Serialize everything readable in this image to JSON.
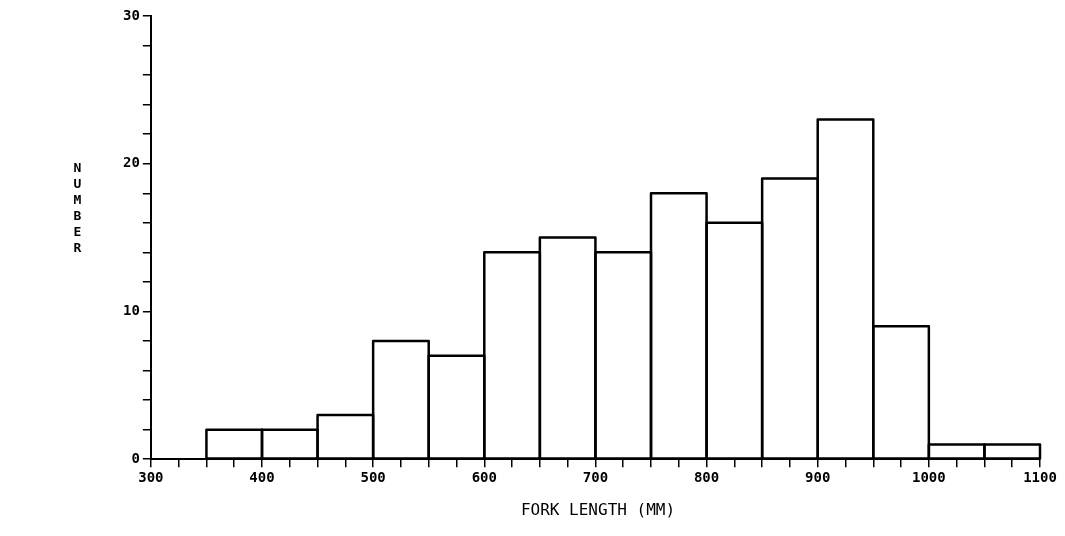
{
  "chart_data": {
    "type": "histogram",
    "xlabel": "FORK LENGTH (MM)",
    "ylabel": "NUMBER",
    "bins": [
      350,
      400,
      450,
      500,
      550,
      600,
      650,
      700,
      750,
      800,
      850,
      900,
      950,
      1000,
      1050,
      1100
    ],
    "values": [
      2,
      2,
      3,
      8,
      7,
      14,
      15,
      14,
      18,
      16,
      19,
      23,
      9,
      1,
      1
    ],
    "color": "#000000",
    "xlim": [
      300,
      1100
    ],
    "xticks": [
      300,
      {
        "value": 325,
        "label": null
      },
      {
        "value": 350,
        "label": null
      },
      {
        "value": 375,
        "label": null
      },
      400,
      {
        "value": 425,
        "label": null
      },
      {
        "value": 450,
        "label": null
      },
      {
        "value": 475,
        "label": null
      },
      500,
      {
        "value": 525,
        "label": null
      },
      {
        "value": 550,
        "label": null
      },
      {
        "value": 575,
        "label": null
      },
      600,
      {
        "value": 625,
        "label": null
      },
      {
        "value": 650,
        "label": null
      },
      {
        "value": 675,
        "label": null
      },
      700,
      {
        "value": 725,
        "label": null
      },
      {
        "value": 750,
        "label": null
      },
      {
        "value": 775,
        "label": null
      },
      800,
      {
        "value": 825,
        "label": null
      },
      {
        "value": 850,
        "label": null
      },
      {
        "value": 875,
        "label": null
      },
      900,
      {
        "value": 925,
        "label": null
      },
      {
        "value": 950,
        "label": null
      },
      {
        "value": 975,
        "label": null
      },
      1000,
      {
        "value": 1025,
        "label": null
      },
      {
        "value": 1050,
        "label": null
      },
      {
        "value": 1075,
        "label": null
      },
      1100
    ],
    "ylim": [
      0,
      30
    ],
    "yticks": [
      0,
      {
        "value": 2,
        "label": null
      },
      {
        "value": 4,
        "label": null
      },
      {
        "value": 6,
        "label": null
      },
      {
        "value": 8,
        "label": null
      },
      10,
      {
        "value": 12,
        "label": null
      },
      {
        "value": 14,
        "label": null
      },
      {
        "value": 16,
        "label": null
      },
      {
        "value": 18,
        "label": null
      },
      20,
      {
        "value": 22,
        "label": null
      },
      {
        "value": 24,
        "label": null
      },
      {
        "value": 26,
        "label": null
      },
      {
        "value": 28,
        "label": null
      },
      30
    ],
    "grid": false,
    "legend": false
  }
}
